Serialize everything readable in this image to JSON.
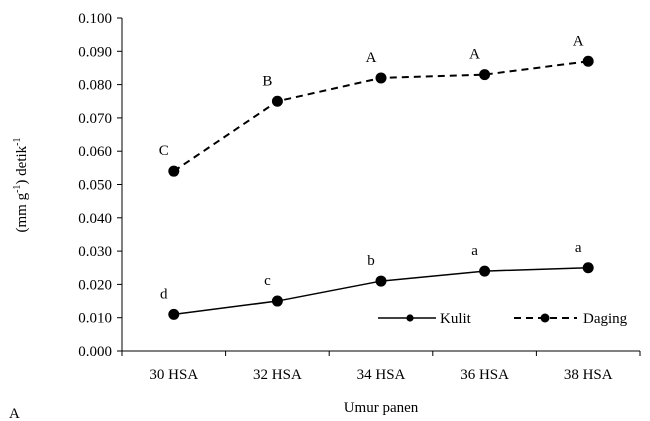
{
  "chart_data": {
    "type": "line",
    "categories": [
      "30 HSA",
      "32 HSA",
      "34 HSA",
      "36 HSA",
      "38 HSA"
    ],
    "series": [
      {
        "name": "Kulit",
        "values": [
          0.011,
          0.015,
          0.021,
          0.024,
          0.025
        ],
        "labels": [
          "d",
          "c",
          "b",
          "a",
          "a"
        ],
        "line_style": "solid",
        "color": "#000000"
      },
      {
        "name": "Daging",
        "values": [
          0.054,
          0.075,
          0.082,
          0.083,
          0.087
        ],
        "labels": [
          "C",
          "B",
          "A",
          "A",
          "A"
        ],
        "line_style": "dashed",
        "color": "#000000"
      }
    ],
    "xlabel": "Umur panen",
    "ylabel": {
      "main": "(mm g",
      "sup": "-1",
      "end": ") detik",
      "sup2": "-1"
    },
    "ylim": [
      0,
      0.1
    ],
    "yticks": [
      "0.000",
      "0.010",
      "0.020",
      "0.030",
      "0.040",
      "0.050",
      "0.060",
      "0.070",
      "0.080",
      "0.090",
      "0.100"
    ],
    "grid": false,
    "legend": "bottom-right",
    "panel_label": "A"
  }
}
